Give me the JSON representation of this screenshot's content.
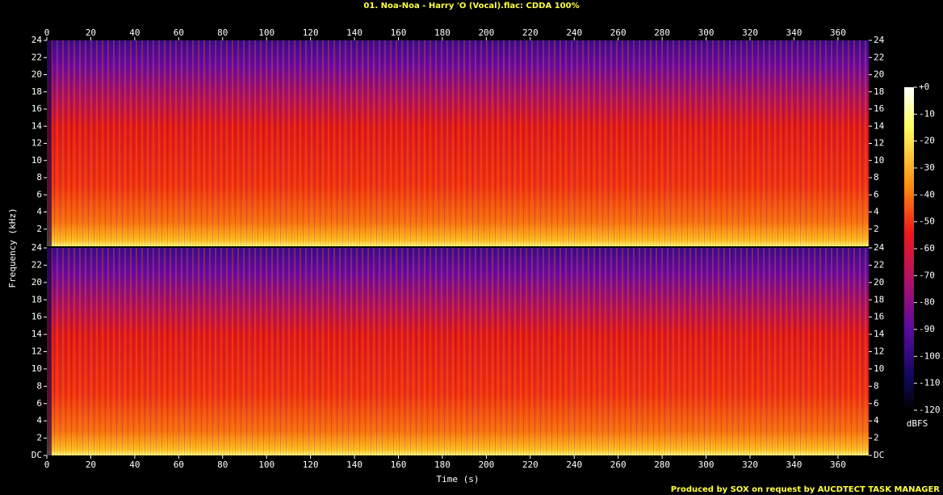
{
  "chart_data": {
    "type": "spectrogram",
    "title": "01. Noa-Noa - Harry 'O (Vocal).flac: CDDA 100%",
    "xlabel": "Time (s)",
    "ylabel": "Frequency (kHz)",
    "footer": "Produced by SOX on request by AUCDTECT TASK MANAGER",
    "xlim": [
      0,
      374
    ],
    "xticks": [
      0,
      20,
      40,
      60,
      80,
      100,
      120,
      140,
      160,
      180,
      200,
      220,
      240,
      260,
      280,
      300,
      320,
      340,
      360
    ],
    "channels": [
      {
        "ylim": [
          0,
          24
        ],
        "yticks": [
          2,
          4,
          6,
          8,
          10,
          12,
          14,
          16,
          18,
          20,
          22,
          24
        ]
      },
      {
        "ylim": [
          0,
          24
        ],
        "yticks": [
          {
            "value": 0,
            "label": "DC"
          },
          2,
          4,
          6,
          8,
          10,
          12,
          14,
          16,
          18,
          20,
          22,
          24
        ]
      }
    ],
    "colorbar": {
      "label": "dBFS",
      "lim": [
        -120,
        0
      ],
      "ticks": [
        {
          "value": 0,
          "label": "+0"
        },
        -10,
        -20,
        -30,
        -40,
        -50,
        -60,
        -70,
        -80,
        -90,
        -100,
        -110,
        -120
      ]
    }
  }
}
